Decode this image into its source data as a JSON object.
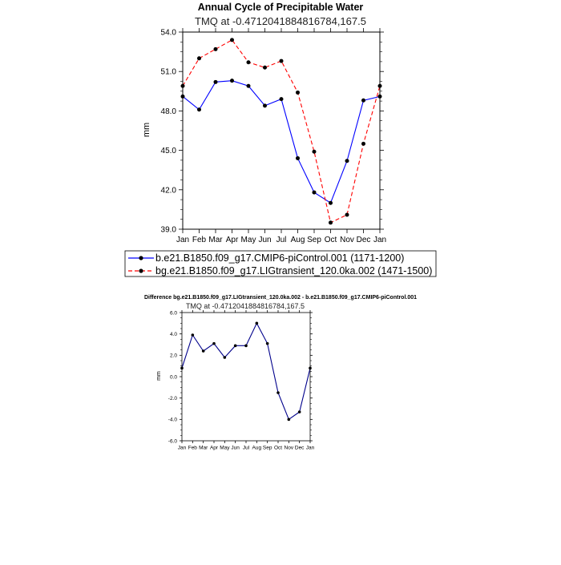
{
  "chart_data": [
    {
      "type": "line",
      "title": "Annual Cycle of Precipitable Water",
      "subtitle": "TMQ at -0.4712041884816784,167.5",
      "xlabel": "",
      "ylabel": "mm",
      "categories": [
        "Jan",
        "Feb",
        "Mar",
        "Apr",
        "May",
        "Jun",
        "Jul",
        "Aug",
        "Sep",
        "Oct",
        "Nov",
        "Dec",
        "Jan"
      ],
      "ylim": [
        39.0,
        54.0
      ],
      "yticks": [
        "39.0",
        "42.0",
        "45.0",
        "48.0",
        "51.0",
        "54.0"
      ],
      "ytick_values": [
        39,
        42,
        45,
        48,
        51,
        54
      ],
      "series": [
        {
          "name": "b.e21.B1850.f09_g17.CMIP6-piControl.001 (1171-1200)",
          "color": "#0000ff",
          "dash": "solid",
          "values": [
            49.1,
            48.1,
            50.2,
            50.3,
            49.9,
            48.4,
            48.9,
            44.4,
            41.8,
            41.0,
            44.2,
            48.8,
            49.1
          ]
        },
        {
          "name": "bg.e21.B1850.f09_g17.LIGtransient_120.0ka.002 (1471-1500)",
          "color": "#ff0000",
          "dash": "dashed",
          "values": [
            49.9,
            52.0,
            52.7,
            53.4,
            51.7,
            51.3,
            51.8,
            49.4,
            44.9,
            39.5,
            40.1,
            45.5,
            49.9
          ]
        }
      ],
      "legend": "bottom"
    },
    {
      "type": "line",
      "title": "Difference bg.e21.B1850.f09_g17.LIGtransient_120.0ka.002 - b.e21.B1850.f09_g17.CMIP6-piControl.001",
      "subtitle": "TMQ at -0.4712041884816784,167.5",
      "xlabel": "",
      "ylabel": "mm",
      "categories": [
        "Jan",
        "Feb",
        "Mar",
        "Apr",
        "May",
        "Jun",
        "Jul",
        "Aug",
        "Sep",
        "Oct",
        "Nov",
        "Dec",
        "Jan"
      ],
      "ylim": [
        -6.0,
        6.0
      ],
      "yticks": [
        "-6.0",
        "-4.0",
        "-2.0",
        "0.0",
        "2.0",
        "4.0",
        "6.0"
      ],
      "ytick_values": [
        -6,
        -4,
        -2,
        0,
        2,
        4,
        6
      ],
      "series": [
        {
          "name": "Difference",
          "color": "#00008b",
          "dash": "solid",
          "values": [
            0.8,
            3.9,
            2.4,
            3.1,
            1.8,
            2.9,
            2.9,
            5.0,
            3.1,
            -1.5,
            -4.0,
            -3.3,
            0.8
          ]
        }
      ]
    }
  ]
}
